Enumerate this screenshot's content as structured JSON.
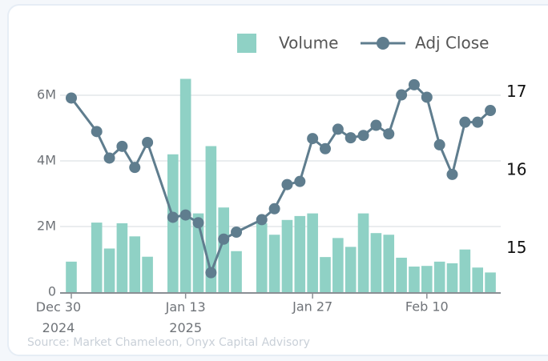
{
  "chart_data": {
    "type": "bar-line",
    "categories": [
      "Dec 30\n2024",
      null,
      null,
      null,
      null,
      null,
      null,
      null,
      null,
      "Jan 13\n2025",
      null,
      null,
      null,
      null,
      null,
      null,
      null,
      null,
      null,
      "Jan 27",
      null,
      null,
      null,
      null,
      null,
      null,
      null,
      null,
      "Feb 10",
      null,
      null,
      null,
      null,
      null
    ],
    "series": [
      {
        "name": "Volume",
        "type": "bar",
        "color": "#8fd1c5",
        "values": [
          930000,
          null,
          2120000,
          1330000,
          2100000,
          1700000,
          1080000,
          null,
          4200000,
          6500000,
          2400000,
          4450000,
          2580000,
          1250000,
          null,
          2100000,
          1750000,
          2200000,
          2320000,
          2400000,
          1070000,
          1650000,
          1380000,
          2400000,
          1800000,
          1750000,
          1050000,
          780000,
          800000,
          930000,
          880000,
          1300000,
          750000,
          600000
        ]
      },
      {
        "name": "Adj Close",
        "type": "line",
        "axis": "y2",
        "color": "#5f7d8e",
        "values": [
          16.93,
          null,
          16.5,
          16.16,
          16.31,
          16.04,
          16.36,
          null,
          15.4,
          15.43,
          15.33,
          14.69,
          15.12,
          15.21,
          null,
          15.37,
          15.51,
          15.82,
          15.86,
          16.41,
          16.28,
          16.53,
          16.42,
          16.45,
          16.58,
          16.47,
          16.97,
          17.1,
          16.94,
          16.33,
          15.95,
          16.62,
          16.62,
          16.77
        ]
      }
    ],
    "ylim": [
      0,
      6700000
    ],
    "yticks": [
      {
        "value": 0,
        "label": "0"
      },
      {
        "value": 2000000,
        "label": "2M"
      },
      {
        "value": 4000000,
        "label": "4M"
      },
      {
        "value": 6000000,
        "label": "6M"
      }
    ],
    "y2lim": [
      14.44,
      17.26
    ],
    "y2ticks": [
      15,
      16,
      17
    ],
    "grid": true,
    "legend": "top-right",
    "source": "Source: Market Chameleon, Onyx Capital Advisory"
  }
}
